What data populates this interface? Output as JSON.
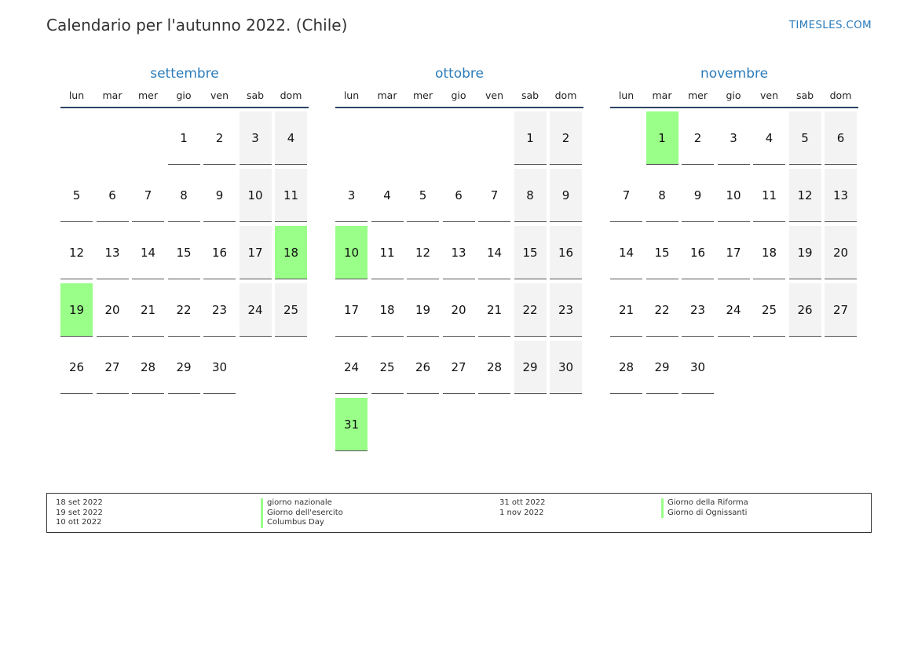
{
  "header": {
    "title": "Calendario per l'autunno 2022. (Chile)",
    "site": "TIMESLES.COM"
  },
  "weekdays": [
    "lun",
    "mar",
    "mer",
    "gio",
    "ven",
    "sab",
    "dom"
  ],
  "months": [
    {
      "name": "settembre",
      "start_offset": 3,
      "days": 30,
      "holidays": [
        18,
        19
      ]
    },
    {
      "name": "ottobre",
      "start_offset": 5,
      "days": 31,
      "holidays": [
        10,
        31
      ]
    },
    {
      "name": "novembre",
      "start_offset": 1,
      "days": 30,
      "holidays": [
        1
      ]
    }
  ],
  "legend": {
    "left": [
      {
        "date": "18 set 2022",
        "name": "giorno nazionale"
      },
      {
        "date": "19 set 2022",
        "name": "Giorno dell'esercito"
      },
      {
        "date": "10 ott 2022",
        "name": "Columbus Day"
      }
    ],
    "right": [
      {
        "date": "31 ott 2022",
        "name": "Giorno della Riforma"
      },
      {
        "date": "1 nov 2022",
        "name": "Giorno di Ognissanti"
      }
    ]
  },
  "colors": {
    "accent": "#2b7bb9",
    "holiday": "#99ff88",
    "weekend": "#f3f3f3",
    "rule": "#2d4565"
  }
}
